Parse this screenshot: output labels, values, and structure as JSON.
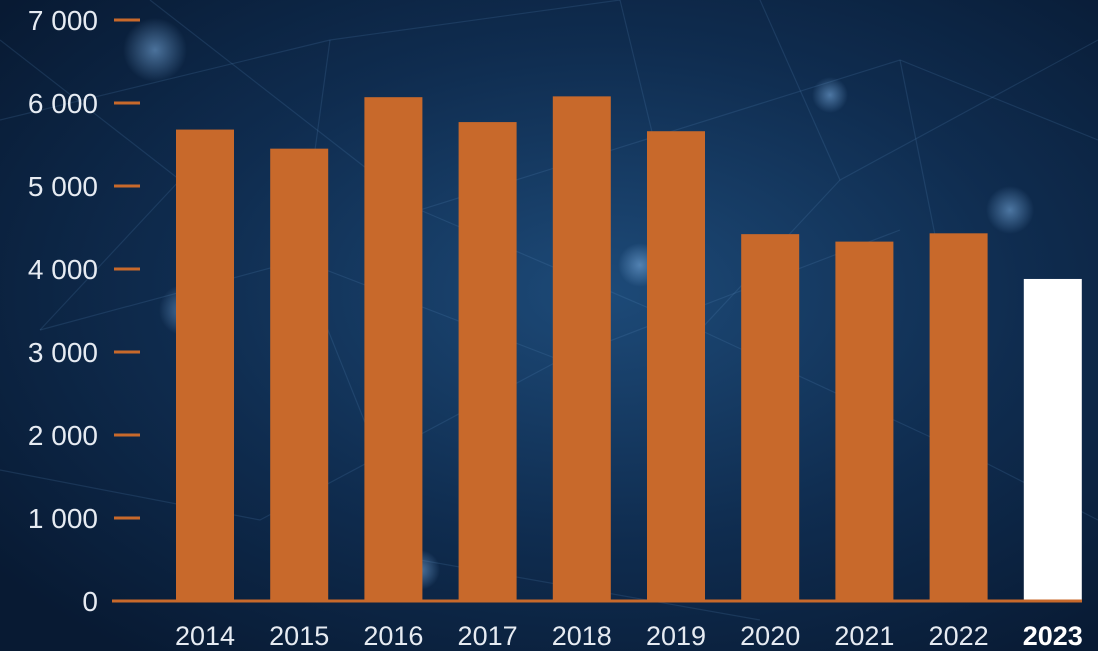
{
  "chart_data": {
    "type": "bar",
    "title": "",
    "xlabel": "",
    "ylabel": "",
    "categories": [
      "2014",
      "2015",
      "2016",
      "2017",
      "2018",
      "2019",
      "2020",
      "2021",
      "2022",
      "2023"
    ],
    "values": [
      5680,
      5450,
      6070,
      5770,
      6080,
      5660,
      4420,
      4330,
      4430,
      3880
    ],
    "highlight": "2023",
    "ylim": [
      0,
      7000
    ],
    "yticks": [
      0,
      1000,
      2000,
      3000,
      4000,
      5000,
      6000,
      7000
    ],
    "ytick_labels": [
      "0",
      "1 000",
      "2 000",
      "3 000",
      "4 000",
      "5 000",
      "6 000",
      "7 000"
    ],
    "grid": false,
    "colors": {
      "bar": "#c8692b",
      "highlight_bar": "#ffffff",
      "axis": "#c8692b",
      "text": "#e6ebf2",
      "background": "#0a1f3a"
    }
  }
}
